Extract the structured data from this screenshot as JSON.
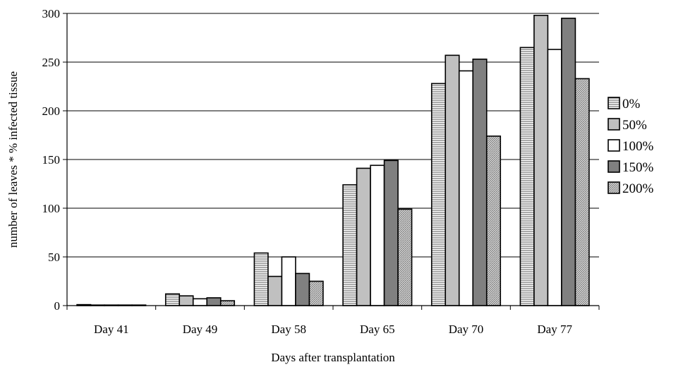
{
  "chart_data": {
    "type": "bar",
    "title": "",
    "xlabel": "Days after transplantation",
    "ylabel": "number of leaves * % infected tissue",
    "ylim": [
      0,
      300
    ],
    "yticks": [
      0,
      50,
      100,
      150,
      200,
      250,
      300
    ],
    "grid": true,
    "legend_position": "right",
    "categories": [
      "Day 41",
      "Day 49",
      "Day 58",
      "Day 65",
      "Day 70",
      "Day 77"
    ],
    "series": [
      {
        "name": "0%",
        "pattern": "horizontal-lines",
        "color": "#ffffff",
        "values": [
          1,
          12,
          54,
          124,
          228,
          265
        ]
      },
      {
        "name": "50%",
        "pattern": "solid",
        "color": "#c0c0c0",
        "values": [
          0.5,
          10,
          30,
          141,
          257,
          298
        ]
      },
      {
        "name": "100%",
        "pattern": "solid",
        "color": "#ffffff",
        "values": [
          0.5,
          7,
          50,
          144,
          241,
          263
        ]
      },
      {
        "name": "150%",
        "pattern": "solid",
        "color": "#808080",
        "values": [
          0.5,
          8,
          33,
          149,
          253,
          295
        ]
      },
      {
        "name": "200%",
        "pattern": "diagonal-lines",
        "color": "#ffffff",
        "values": [
          0.3,
          5,
          25,
          99,
          174,
          233
        ]
      }
    ]
  }
}
